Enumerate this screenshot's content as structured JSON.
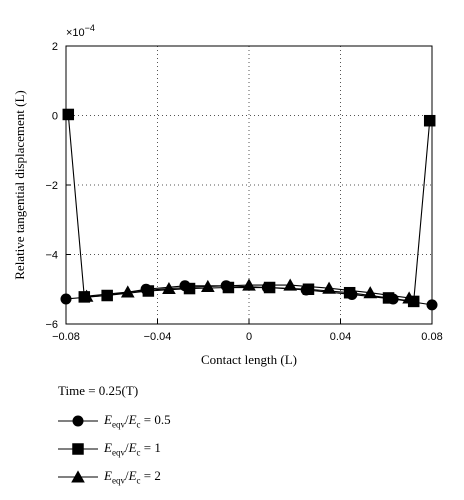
{
  "chart_data": {
    "type": "line",
    "xlabel": "Contact length (L)",
    "ylabel": "Relative tangential displacement (L)",
    "multiplier": "×10",
    "multiplier_exp": "−4",
    "xlim": [
      -0.08,
      0.08
    ],
    "ylim": [
      -6,
      2
    ],
    "x_ticks": [
      -0.08,
      -0.04,
      0,
      0.04,
      0.08
    ],
    "x_tick_labels": [
      "−0.08",
      "−0.04",
      "0",
      "0.04",
      "0.08"
    ],
    "y_ticks": [
      2,
      0,
      -2,
      -4,
      -6
    ],
    "y_tick_labels": [
      "2",
      "0",
      "−2",
      "−4",
      "−6"
    ],
    "grid": true,
    "legend_title": "Time = 0.25(T)",
    "series": [
      {
        "name": "E_eqv/E_c = 0.5",
        "name_parts": {
          "sym": "E",
          "sub1": "eqv",
          "sym2": "E",
          "sub2": "c",
          "value": " = 0.5"
        },
        "marker": "circle",
        "x": [
          -0.08,
          -0.062,
          -0.045,
          -0.028,
          -0.01,
          0.008,
          0.025,
          0.045,
          0.063,
          0.08
        ],
        "y": [
          -5.28,
          -5.18,
          -5.0,
          -4.9,
          -4.9,
          -4.95,
          -5.02,
          -5.15,
          -5.28,
          -5.45
        ]
      },
      {
        "name": "E_eqv/E_c = 1",
        "name_parts": {
          "sym": "E",
          "sub1": "eqv",
          "sym2": "E",
          "sub2": "c",
          "value": " = 1"
        },
        "marker": "square",
        "x": [
          -0.079,
          -0.072,
          -0.062,
          -0.044,
          -0.026,
          -0.009,
          0.009,
          0.026,
          0.044,
          0.061,
          0.072,
          0.079
        ],
        "y": [
          0.03,
          -5.22,
          -5.18,
          -5.05,
          -4.98,
          -4.95,
          -4.95,
          -5.0,
          -5.1,
          -5.25,
          -5.35,
          -0.15
        ]
      },
      {
        "name": "E_eqv/E_c = 2",
        "name_parts": {
          "sym": "E",
          "sub1": "eqv",
          "sym2": "E",
          "sub2": "c",
          "value": " = 2"
        },
        "marker": "triangle",
        "x": [
          -0.071,
          -0.053,
          -0.035,
          -0.018,
          0.0,
          0.018,
          0.035,
          0.053,
          0.07
        ],
        "y": [
          -5.2,
          -5.08,
          -4.98,
          -4.92,
          -4.88,
          -4.88,
          -4.97,
          -5.1,
          -5.25
        ]
      }
    ]
  }
}
